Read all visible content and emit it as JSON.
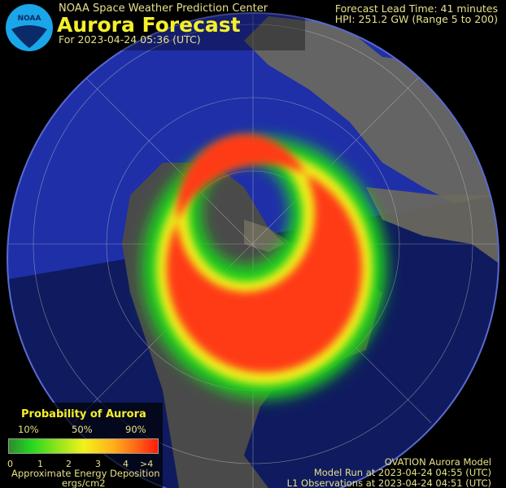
{
  "header": {
    "organization": "NOAA Space Weather Prediction Center",
    "title": "Aurora Forecast",
    "forecast_for": "For 2023-04-24 05:36 (UTC)",
    "logo_text": "NOAA"
  },
  "status": {
    "lead_time": "Forecast Lead Time:  41 minutes",
    "hpi": "HPI: 251.2 GW (Range 5 to 200)"
  },
  "legend": {
    "title": "Probability of Aurora",
    "percent_labels": [
      "10%",
      "50%",
      "90%"
    ],
    "energy_ticks": [
      "0",
      "1",
      "2",
      "3",
      "4",
      ">4"
    ],
    "energy_label": "Approximate Energy Deposition",
    "energy_units": "ergs/cm2",
    "colors": [
      "#22d81e",
      "#f2f21a",
      "#ff1a0a"
    ]
  },
  "model": {
    "name": "OVATION Aurora Model",
    "model_run": "Model Run at 2023-04-24 04:55 (UTC)",
    "observations": "L1 Observations at 2023-04-24 04:51 (UTC)"
  },
  "colors": {
    "ocean_day": "#1f2fa8",
    "ocean_night": "#0f1b5e",
    "land": "#6d6a5c",
    "text": "#e6e08a",
    "title": "#f5f02a"
  }
}
